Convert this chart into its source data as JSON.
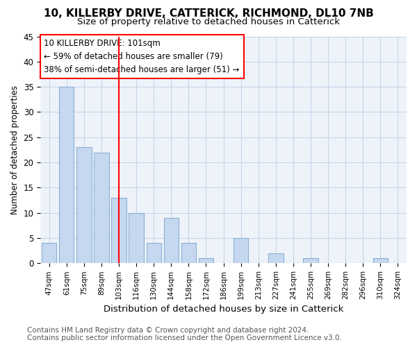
{
  "title": "10, KILLERBY DRIVE, CATTERICK, RICHMOND, DL10 7NB",
  "subtitle": "Size of property relative to detached houses in Catterick",
  "xlabel": "Distribution of detached houses by size in Catterick",
  "ylabel": "Number of detached properties",
  "categories": [
    "47sqm",
    "61sqm",
    "75sqm",
    "89sqm",
    "103sqm",
    "116sqm",
    "130sqm",
    "144sqm",
    "158sqm",
    "172sqm",
    "186sqm",
    "199sqm",
    "213sqm",
    "227sqm",
    "241sqm",
    "255sqm",
    "269sqm",
    "282sqm",
    "296sqm",
    "310sqm",
    "324sqm"
  ],
  "values": [
    4,
    35,
    23,
    22,
    13,
    10,
    4,
    9,
    4,
    1,
    0,
    5,
    0,
    2,
    0,
    1,
    0,
    0,
    0,
    1,
    0
  ],
  "bar_color": "#c5d8ef",
  "bar_edge_color": "#8ab0d4",
  "redline_x": 4.0,
  "annotation_line1": "10 KILLERBY DRIVE: 101sqm",
  "annotation_line2": "← 59% of detached houses are smaller (79)",
  "annotation_line3": "38% of semi-detached houses are larger (51) →",
  "ylim_max": 45,
  "ytick_step": 5,
  "footer1": "Contains HM Land Registry data © Crown copyright and database right 2024.",
  "footer2": "Contains public sector information licensed under the Open Government Licence v3.0.",
  "bg_color": "#ffffff",
  "plot_bg_color": "#eef3fa",
  "grid_color": "#c8d4e8",
  "title_fontsize": 11,
  "subtitle_fontsize": 9.5,
  "xlabel_fontsize": 9.5,
  "ylabel_fontsize": 8.5,
  "tick_fontsize": 7.5,
  "annot_fontsize": 8.5,
  "footer_fontsize": 7.5
}
